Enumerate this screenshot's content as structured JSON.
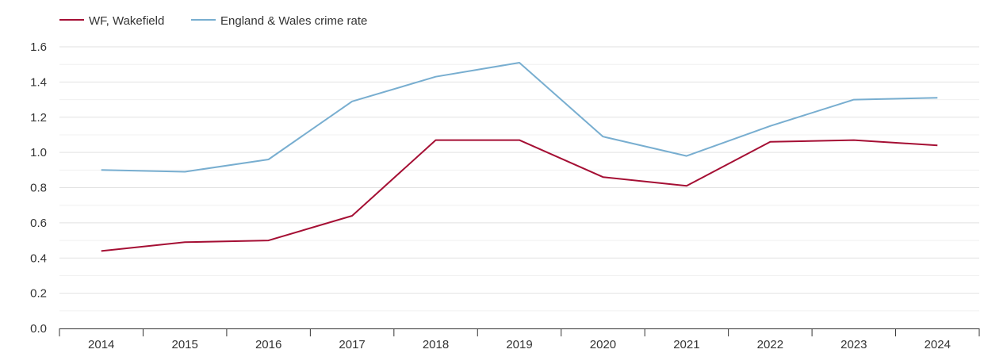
{
  "chart_data": {
    "type": "line",
    "title": "",
    "xlabel": "",
    "ylabel": "",
    "categories": [
      "2014",
      "2015",
      "2016",
      "2017",
      "2018",
      "2019",
      "2020",
      "2021",
      "2022",
      "2023",
      "2024"
    ],
    "series": [
      {
        "name": "WF, Wakefield",
        "color": "#a50f34",
        "values": [
          0.44,
          0.49,
          0.5,
          0.64,
          1.07,
          1.07,
          0.86,
          0.81,
          1.06,
          1.07,
          1.04
        ]
      },
      {
        "name": "England & Wales crime rate",
        "color": "#78aed0",
        "values": [
          0.9,
          0.89,
          0.96,
          1.29,
          1.43,
          1.51,
          1.09,
          0.98,
          1.15,
          1.3,
          1.31
        ]
      }
    ],
    "ylim": [
      0,
      1.6
    ],
    "yticks": [
      "0.0",
      "0.2",
      "0.4",
      "0.6",
      "0.8",
      "1.0",
      "1.2",
      "1.4",
      "1.6"
    ],
    "grid": true,
    "legend_position": "top-left"
  }
}
